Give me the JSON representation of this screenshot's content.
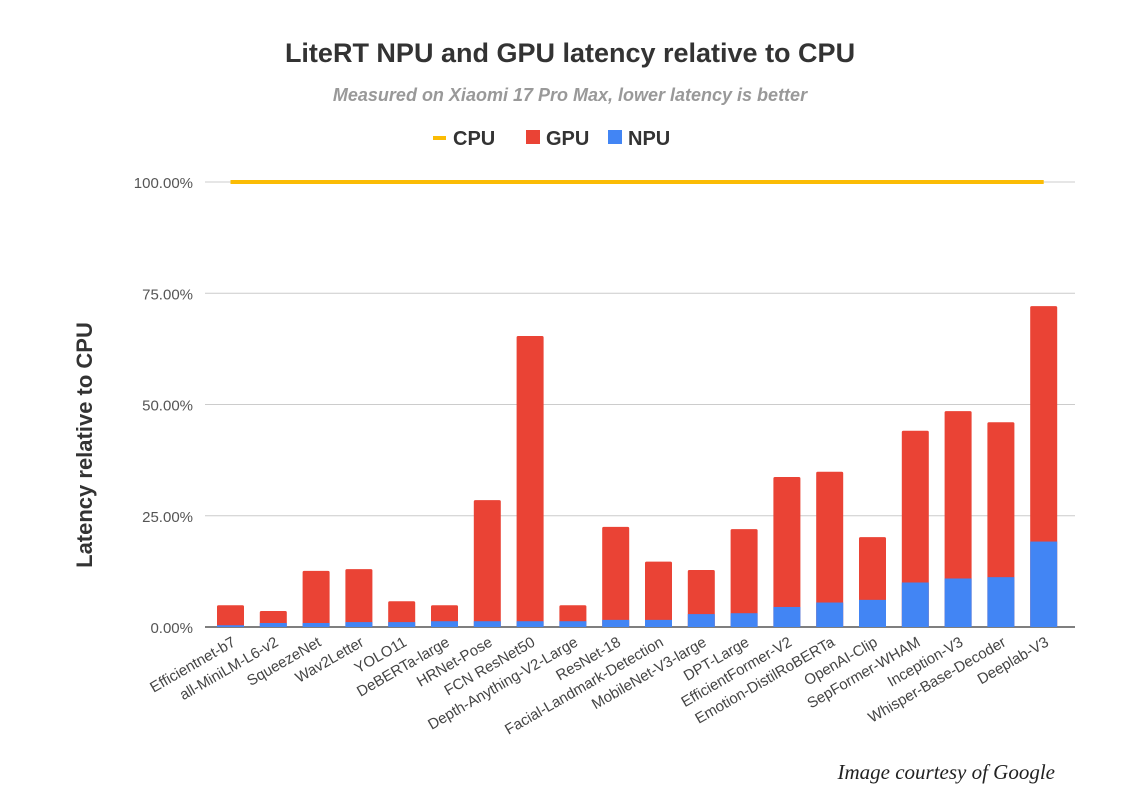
{
  "chart_data": {
    "type": "bar",
    "title": "LiteRT NPU and GPU latency relative to CPU",
    "subtitle": "Measured on Xiaomi 17 Pro Max, lower latency is better",
    "xlabel": "",
    "ylabel": "Latency relative to CPU",
    "ylim": [
      0,
      100
    ],
    "yticks": [
      0,
      25,
      50,
      75,
      100
    ],
    "ytick_labels": [
      "0.00%",
      "25.00%",
      "50.00%",
      "75.00%",
      "100.00%"
    ],
    "grid": true,
    "legend_position": "top",
    "categories": [
      "Efficientnet-b7",
      "all-MiniLM-L6-v2",
      "SqueezeNet",
      "Wav2Letter",
      "YOLO11",
      "DeBERTa-large",
      "HRNet-Pose",
      "FCN ResNet50",
      "Depth-Anything-V2-Large",
      "ResNet-18",
      "Facial-Landmark-Detection",
      "MobileNet-V3-large",
      "DPT-Large",
      "EfficientFormer-V2",
      "Emotion-DistilRoBERTa",
      "OpenAI-Clip",
      "SepFormer-WHAM",
      "Inception-V3",
      "Whisper-Base-Decoder",
      "Deeplab-V3"
    ],
    "series": [
      {
        "name": "CPU",
        "kind": "line",
        "color": "#FBBC04",
        "values": [
          100,
          100,
          100,
          100,
          100,
          100,
          100,
          100,
          100,
          100,
          100,
          100,
          100,
          100,
          100,
          100,
          100,
          100,
          100,
          100
        ]
      },
      {
        "name": "GPU",
        "kind": "bar",
        "color": "#EA4335",
        "values": [
          4.9,
          3.6,
          12.6,
          13.0,
          5.8,
          4.9,
          28.5,
          65.4,
          4.9,
          22.5,
          14.7,
          12.8,
          22.0,
          33.7,
          34.9,
          20.2,
          44.1,
          48.5,
          46.0,
          72.1
        ]
      },
      {
        "name": "NPU",
        "kind": "bar",
        "color": "#4285F4",
        "values": [
          0.4,
          0.9,
          0.9,
          1.1,
          1.1,
          1.3,
          1.3,
          1.3,
          1.3,
          1.6,
          1.6,
          2.9,
          3.1,
          4.5,
          5.5,
          6.1,
          10.0,
          10.9,
          11.2,
          19.2
        ]
      }
    ],
    "credit": "Image courtesy of Google"
  }
}
